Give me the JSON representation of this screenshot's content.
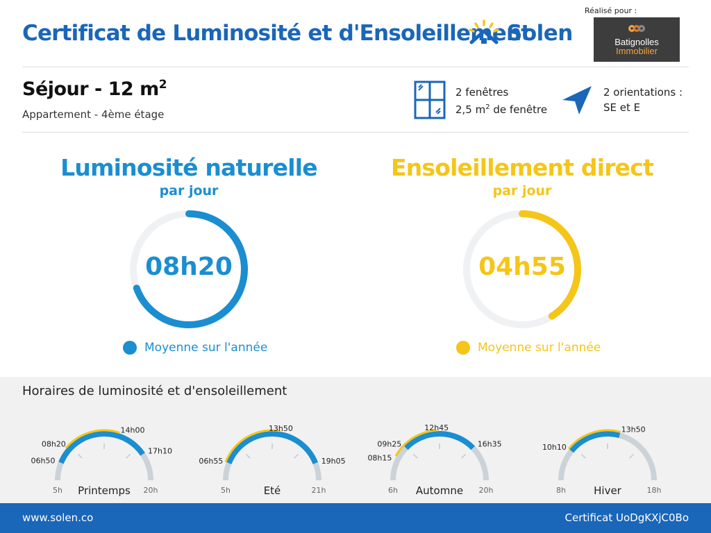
{
  "header": {
    "title": "Certificat de Luminosité et d'Ensoleillement",
    "brand": "Solen",
    "made_for_label": "Réalisé pour :",
    "partner_name": "Batignolles",
    "partner_sub": "Immobilier"
  },
  "room": {
    "title": "Séjour - 12 m",
    "title_sup": "2",
    "subtitle": "Appartement - 4ème étage",
    "windows_line1": "2 fenêtres",
    "windows_line2_a": "2,5 m",
    "windows_line2_sup": "2",
    "windows_line2_b": " de fenêtre",
    "orient_line1": "2 orientations :",
    "orient_line2": "SE et E"
  },
  "colors": {
    "blue": "#1a8ed1",
    "yellow": "#f5c518",
    "dark_blue": "#1a66b8",
    "track": "#f0f1f3",
    "gauge_track": "#ccd3d8"
  },
  "luminosite": {
    "title": "Luminosité naturelle",
    "per_day": "par jour",
    "value": "08h20",
    "fraction": 0.6944,
    "legend": "Moyenne sur l'année"
  },
  "ensoleillement": {
    "title": "Ensoleillement direct",
    "per_day": "par jour",
    "value": "04h55",
    "fraction": 0.4097,
    "legend": "Moyenne sur l'année"
  },
  "schedule": {
    "title": "Horaires de luminosité et d'ensoleillement",
    "seasons": [
      {
        "name": "Printemps",
        "min": "5h",
        "max": "20h",
        "min_h": 5,
        "max_h": 20,
        "light_start": "06h50",
        "light_end": "17h10",
        "sun_start": "08h20",
        "sun_end": "14h00",
        "light_start_h": 6.833,
        "light_end_h": 17.167,
        "sun_start_h": 8.333,
        "sun_end_h": 14.0
      },
      {
        "name": "Eté",
        "min": "5h",
        "max": "21h",
        "min_h": 5,
        "max_h": 21,
        "light_start": "06h55",
        "light_end": "19h05",
        "sun_start": "",
        "sun_end": "13h50",
        "light_start_h": 6.917,
        "light_end_h": 19.083,
        "sun_start_h": 6.917,
        "sun_end_h": 13.833
      },
      {
        "name": "Automne",
        "min": "6h",
        "max": "20h",
        "min_h": 6,
        "max_h": 20,
        "light_start": "09h25",
        "light_end": "16h35",
        "sun_start": "08h15",
        "sun_end": "12h45",
        "light_start_h": 9.417,
        "light_end_h": 16.583,
        "sun_start_h": 8.25,
        "sun_end_h": 12.75
      },
      {
        "name": "Hiver",
        "min": "8h",
        "max": "18h",
        "min_h": 8,
        "max_h": 18,
        "light_start": "10h10",
        "light_end": "",
        "sun_start": "",
        "sun_end": "13h50",
        "light_start_h": 10.167,
        "light_end_h": 13.833,
        "sun_start_h": 10.167,
        "sun_end_h": 13.833
      }
    ]
  },
  "footer": {
    "website": "www.solen.co",
    "certificate": "Certificat UoDgKXjC0Bo"
  }
}
